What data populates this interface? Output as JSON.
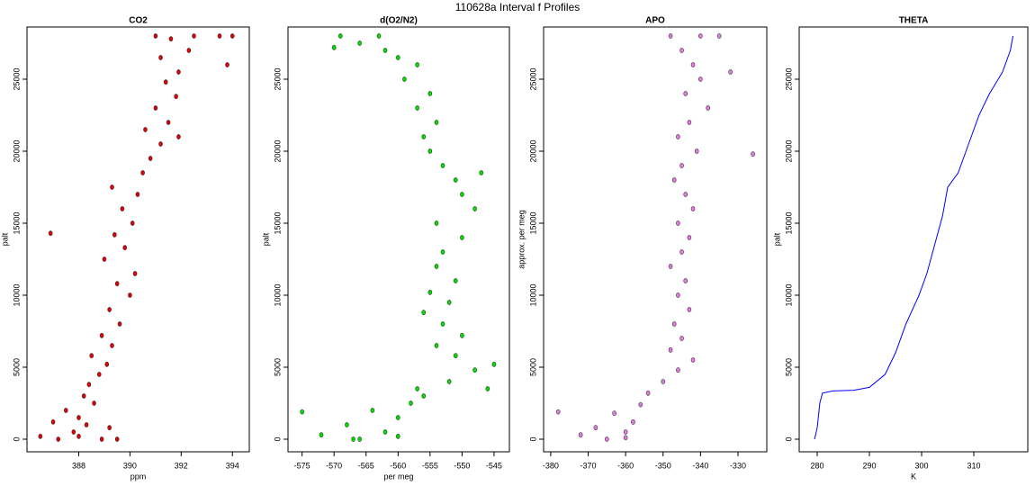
{
  "title": "110628a   Interval f Profiles",
  "chart_data": [
    {
      "type": "scatter",
      "title": "CO2",
      "xlabel": "ppm",
      "ylabel": "palt",
      "color": "#e00000",
      "xlim": [
        385.98,
        394.66
      ],
      "ylim": [
        -875,
        28625
      ],
      "xticks": [
        388,
        390,
        392,
        394
      ],
      "yticks": [
        0,
        5000,
        10000,
        15000,
        20000,
        25000
      ],
      "x": [
        386.5,
        387.2,
        387.8,
        388.3,
        388.0,
        387.5,
        388.6,
        388.2,
        389.2,
        388.9,
        387.0,
        388.4,
        388.8,
        389.1,
        388.5,
        389.3,
        388.9,
        389.6,
        389.2,
        390.0,
        389.5,
        390.2,
        389.0,
        389.8,
        389.4,
        390.1,
        389.7,
        390.3,
        389.3,
        390.5,
        390.8,
        391.2,
        390.6,
        391.5,
        391.0,
        391.8,
        391.4,
        391.9,
        391.2,
        392.3,
        391.6,
        392.5,
        393.5,
        391.0,
        394.0,
        386.9,
        393.8,
        391.9,
        388.0,
        389.5
      ],
      "values": [
        200,
        0,
        500,
        1000,
        1500,
        2000,
        2500,
        3000,
        800,
        0,
        1200,
        3800,
        4500,
        5200,
        5800,
        6500,
        7200,
        8000,
        9000,
        10000,
        10800,
        11500,
        12500,
        13300,
        14200,
        15000,
        16000,
        17000,
        17500,
        18500,
        19500,
        20500,
        21500,
        22000,
        23000,
        23800,
        24800,
        25500,
        26500,
        27000,
        27800,
        28000,
        28000,
        28000,
        28000,
        14300,
        26000,
        21000,
        200,
        0
      ]
    },
    {
      "type": "scatter",
      "title": "d(O2/N2)",
      "xlabel": "per meg",
      "ylabel": "palt",
      "color": "#00e000",
      "xlim": [
        -577.2,
        -542.6
      ],
      "ylim": [
        -875,
        28625
      ],
      "xticks": [
        -575,
        -570,
        -565,
        -560,
        -555,
        -550,
        -545
      ],
      "yticks": [
        0,
        5000,
        10000,
        15000,
        20000,
        25000
      ],
      "x": [
        -566,
        -562,
        -568,
        -560,
        -564,
        -558,
        -572,
        -556,
        -557,
        -552,
        -548,
        -545,
        -551,
        -554,
        -550,
        -553,
        -556,
        -552,
        -555,
        -551,
        -554,
        -553,
        -550,
        -554,
        -548,
        -550,
        -551,
        -553,
        -555,
        -556,
        -554,
        -557,
        -555,
        -559,
        -557,
        -562,
        -566,
        -569,
        -563,
        -575,
        -546,
        -547,
        -560,
        -570,
        -560,
        -567
      ],
      "values": [
        0,
        500,
        1000,
        1500,
        2000,
        2500,
        300,
        3000,
        3500,
        4000,
        4800,
        5200,
        5800,
        6500,
        7200,
        8000,
        8800,
        9500,
        10200,
        11000,
        12000,
        13000,
        14000,
        15000,
        16000,
        17000,
        18000,
        19000,
        20000,
        21000,
        22000,
        23000,
        24000,
        25000,
        26000,
        27000,
        27500,
        28000,
        28000,
        1900,
        3500,
        18500,
        26500,
        27200,
        200,
        0
      ]
    },
    {
      "type": "scatter",
      "title": "APO",
      "ylabel": "approx. per meg",
      "color": "#e07ae0",
      "xlim": [
        -381.9,
        -322.3
      ],
      "ylim": [
        -875,
        28625
      ],
      "xticks": [
        -380,
        -370,
        -360,
        -350,
        -340,
        -330
      ],
      "yticks": [
        0,
        5000,
        10000,
        15000,
        20000,
        25000
      ],
      "x": [
        -365,
        -360,
        -368,
        -358,
        -363,
        -356,
        -372,
        -354,
        -350,
        -346,
        -342,
        -348,
        -345,
        -347,
        -343,
        -346,
        -344,
        -348,
        -345,
        -343,
        -346,
        -342,
        -344,
        -347,
        -345,
        -341,
        -346,
        -343,
        -338,
        -344,
        -340,
        -342,
        -345,
        -340,
        -348,
        -335,
        -378,
        -326,
        -332,
        -360
      ],
      "values": [
        0,
        500,
        800,
        1200,
        1800,
        2400,
        300,
        3200,
        4000,
        4800,
        5500,
        6200,
        7000,
        8000,
        9000,
        10000,
        11000,
        12000,
        13000,
        14000,
        15000,
        16000,
        17000,
        18000,
        19000,
        20000,
        21000,
        22000,
        23000,
        24000,
        25000,
        26000,
        27000,
        28000,
        28000,
        28000,
        1900,
        19800,
        25500,
        100
      ]
    },
    {
      "type": "line",
      "title": "THETA",
      "xlabel": "K",
      "ylabel": "palt",
      "color": "#0000ff",
      "xlim": [
        276.55,
        320.34
      ],
      "ylim": [
        -875,
        28625
      ],
      "xticks": [
        280,
        290,
        300,
        310
      ],
      "yticks": [
        0,
        5000,
        10000,
        15000,
        20000,
        25000
      ],
      "x": [
        279.5,
        280,
        280.5,
        281,
        283,
        287,
        290,
        293,
        295,
        297,
        299.5,
        301,
        302.5,
        304,
        305,
        307,
        309,
        311,
        313,
        315.5,
        317,
        317.5
      ],
      "values": [
        0,
        800,
        2500,
        3200,
        3350,
        3400,
        3600,
        4500,
        6000,
        8000,
        10000,
        11500,
        13500,
        15500,
        17500,
        18500,
        20500,
        22500,
        24000,
        25500,
        27000,
        28000
      ]
    }
  ]
}
